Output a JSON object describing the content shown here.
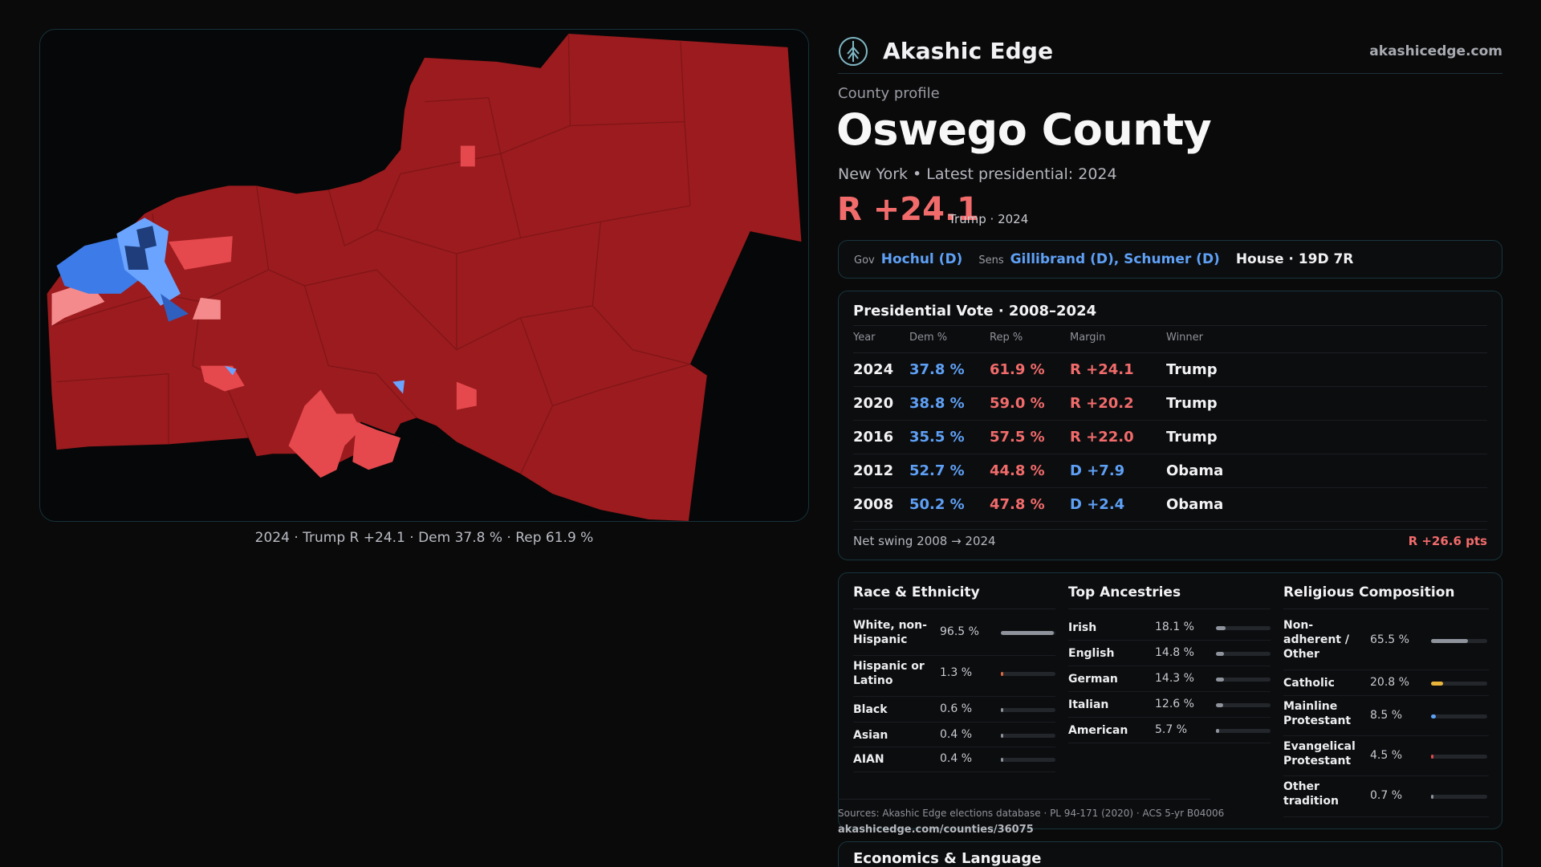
{
  "map": {
    "caption": "2024 · Trump R +24.1 · Dem 37.8 % · Rep 61.9 %",
    "colors": {
      "base": "#9b1b1e",
      "strong_r": "#e5484d",
      "light_r": "#f48a8c",
      "strong_d": "#3d7be8",
      "light_d": "#6aa4ff",
      "dark_d": "#1e3d7a"
    }
  },
  "header": {
    "brand": "Akashic Edge",
    "url": "akashicedge.com",
    "logo_icon": "tree-globe-icon"
  },
  "profile": {
    "kicker": "County profile",
    "title": "Oswego County",
    "subline": "New York • Latest presidential: 2024",
    "margin": "R +24.1",
    "margin_note": "Trump · 2024"
  },
  "officials": {
    "gov_key": "Gov",
    "gov": "Hochul (D)",
    "sens_key": "Sens",
    "sens": "Gillibrand (D), Schumer (D)",
    "house": "House · 19D 7R"
  },
  "votes": {
    "title": "Presidential Vote · 2008–2024",
    "headers": [
      "Year",
      "Dem %",
      "Rep %",
      "Margin",
      "Winner"
    ],
    "rows": [
      {
        "year": "2024",
        "dem": "37.8 %",
        "rep": "61.9 %",
        "margin": "R +24.1",
        "party": "R",
        "winner": "Trump"
      },
      {
        "year": "2020",
        "dem": "38.8 %",
        "rep": "59.0 %",
        "margin": "R +20.2",
        "party": "R",
        "winner": "Trump"
      },
      {
        "year": "2016",
        "dem": "35.5 %",
        "rep": "57.5 %",
        "margin": "R +22.0",
        "party": "R",
        "winner": "Trump"
      },
      {
        "year": "2012",
        "dem": "52.7 %",
        "rep": "44.8 %",
        "margin": "D +7.9",
        "party": "D",
        "winner": "Obama"
      },
      {
        "year": "2008",
        "dem": "50.2 %",
        "rep": "47.8 %",
        "margin": "D +2.4",
        "party": "D",
        "winner": "Obama"
      }
    ],
    "swing_label": "Net swing 2008 → 2024",
    "swing_value": "R +26.6 pts"
  },
  "race": {
    "title": "Race & Ethnicity",
    "items": [
      {
        "label": "White, non-Hispanic",
        "value": "96.5 %",
        "fraction": 0.965,
        "color": "#8e939c"
      },
      {
        "label": "Hispanic or Latino",
        "value": "1.3 %",
        "fraction": 0.013,
        "color": "#e0683e"
      },
      {
        "label": "Black",
        "value": "0.6 %",
        "fraction": 0.006,
        "color": "#8e939c"
      },
      {
        "label": "Asian",
        "value": "0.4 %",
        "fraction": 0.004,
        "color": "#8e939c"
      },
      {
        "label": "AIAN",
        "value": "0.4 %",
        "fraction": 0.004,
        "color": "#8e939c"
      }
    ]
  },
  "ancestry": {
    "title": "Top Ancestries",
    "items": [
      {
        "label": "Irish",
        "value": "18.1 %",
        "fraction": 0.181,
        "color": "#8e939c"
      },
      {
        "label": "English",
        "value": "14.8 %",
        "fraction": 0.148,
        "color": "#8e939c"
      },
      {
        "label": "German",
        "value": "14.3 %",
        "fraction": 0.143,
        "color": "#8e939c"
      },
      {
        "label": "Italian",
        "value": "12.6 %",
        "fraction": 0.126,
        "color": "#8e939c"
      },
      {
        "label": "American",
        "value": "5.7 %",
        "fraction": 0.057,
        "color": "#8e939c"
      }
    ]
  },
  "religion": {
    "title": "Religious Composition",
    "items": [
      {
        "label": "Non-adherent / Other",
        "value": "65.5 %",
        "fraction": 0.655,
        "color": "#8e939c"
      },
      {
        "label": "Catholic",
        "value": "20.8 %",
        "fraction": 0.208,
        "color": "#e8b43a"
      },
      {
        "label": "Mainline Protestant",
        "value": "8.5 %",
        "fraction": 0.085,
        "color": "#5ea0f5"
      },
      {
        "label": "Evangelical Protestant",
        "value": "4.5 %",
        "fraction": 0.045,
        "color": "#e24a4a"
      },
      {
        "label": "Other tradition",
        "value": "0.7 %",
        "fraction": 0.007,
        "color": "#8e939c"
      }
    ]
  },
  "sources": {
    "text": "Sources: Akashic Edge elections database · PL 94-171 (2020) · ACS 5-yr B04006",
    "url": "akashicedge.com/counties/36075"
  },
  "econ": {
    "title": "Economics & Language"
  }
}
